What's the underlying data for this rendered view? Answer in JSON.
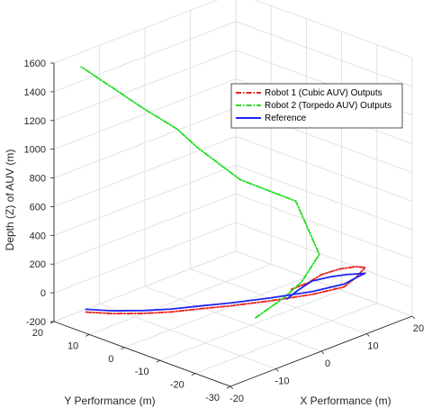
{
  "chart_data": {
    "type": "line",
    "projection": "3d",
    "xlabel": "X Performance (m)",
    "ylabel": "Y Performance (m)",
    "zlabel": "Depth (Z) of AUV (m)",
    "xlim": [
      -20,
      20
    ],
    "ylim": [
      -30,
      20
    ],
    "zlim": [
      -200,
      1600
    ],
    "xticks": [
      "-20",
      "-10",
      "0",
      "10",
      "20"
    ],
    "yticks": [
      "-30",
      "-20",
      "-10",
      "0",
      "10",
      "20"
    ],
    "zticks": [
      "-200",
      "0",
      "200",
      "400",
      "600",
      "800",
      "1000",
      "1200",
      "1400",
      "1600"
    ],
    "grid": true,
    "legend_position": "top-right",
    "series": [
      {
        "name": "Robot 1 (Cubic AUV) Outputs",
        "color": "#e8201b",
        "style": "dash-dot",
        "x": [
          -13,
          -11,
          -8,
          -5,
          -2,
          1,
          5,
          9,
          12,
          13,
          13,
          12,
          10,
          7,
          4,
          1,
          -2
        ],
        "y": [
          20,
          15,
          10,
          6,
          2,
          -3,
          -9,
          -16,
          -21,
          -23,
          -25,
          -27,
          -27,
          -26,
          -25,
          -25,
          -24
        ],
        "z": [
          -220,
          -210,
          -200,
          -190,
          -170,
          -140,
          -100,
          -40,
          20,
          90,
          160,
          210,
          240,
          250,
          240,
          220,
          200
        ]
      },
      {
        "name": "Robot 2 (Torpedo AUV) Outputs",
        "color": "#22dd22",
        "style": "dash-dot",
        "x": [
          -9,
          -5,
          -2,
          5,
          13,
          7,
          0,
          -3,
          -7,
          -14
        ],
        "y": [
          -23,
          -26,
          -27,
          -23,
          -6,
          2,
          5,
          7,
          11,
          20
        ],
        "z": [
          80,
          200,
          280,
          350,
          470,
          620,
          900,
          1050,
          1200,
          1500
        ]
      },
      {
        "name": "Reference",
        "color": "#1f24f4",
        "style": "solid",
        "x": [
          -13,
          -11,
          -8,
          -5,
          -2,
          1,
          5,
          9,
          12,
          13,
          12,
          10,
          7,
          4,
          1,
          -3,
          -6
        ],
        "y": [
          20,
          15,
          10,
          6,
          2,
          -3,
          -9,
          -16,
          -21,
          -24,
          -27,
          -29,
          -28,
          -27,
          -26,
          -27,
          -28
        ],
        "z": [
          -200,
          -190,
          -180,
          -170,
          -150,
          -120,
          -80,
          -20,
          40,
          110,
          170,
          210,
          230,
          240,
          240,
          230,
          220
        ]
      }
    ]
  }
}
